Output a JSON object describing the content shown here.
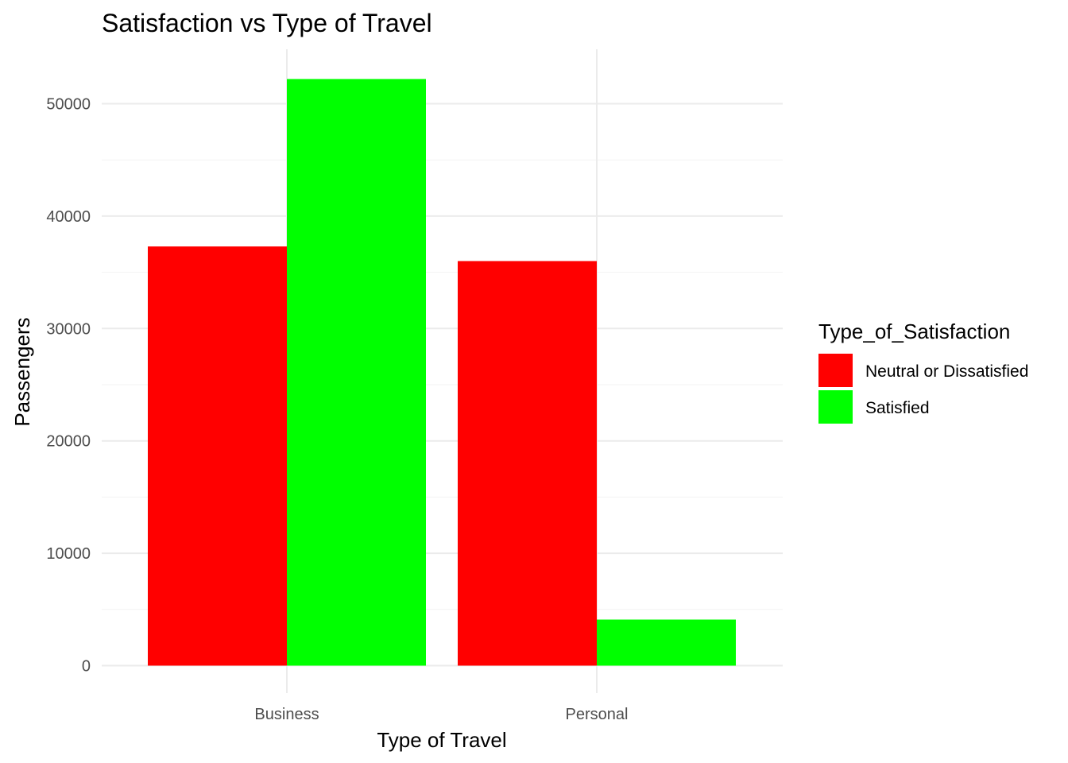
{
  "chart_data": {
    "type": "bar",
    "title": "Satisfaction vs Type of Travel",
    "xlabel": "Type of Travel",
    "ylabel": "Passengers",
    "categories": [
      "Business",
      "Personal"
    ],
    "series": [
      {
        "name": "Neutral or Dissatisfied",
        "color": "#ff0000",
        "values": [
          37300,
          36000
        ]
      },
      {
        "name": "Satisfied",
        "color": "#00ff00",
        "values": [
          52200,
          4100
        ]
      }
    ],
    "ylim": [
      0,
      55000
    ],
    "yticks": [
      0,
      10000,
      20000,
      30000,
      40000,
      50000
    ],
    "grid": true,
    "legend": {
      "title": "Type_of_Satisfaction",
      "position": "right"
    }
  }
}
